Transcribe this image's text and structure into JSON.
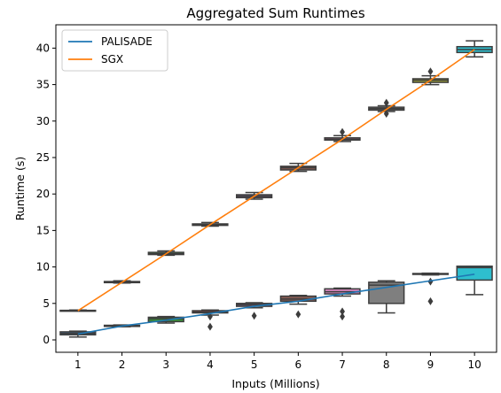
{
  "chart_data": {
    "type": "box",
    "title": "Aggregated Sum Runtimes",
    "xlabel": "Inputs (Millions)",
    "ylabel": "Runtime (s)",
    "categories": [
      "1",
      "2",
      "3",
      "4",
      "5",
      "6",
      "7",
      "8",
      "9",
      "10"
    ],
    "ylim": [
      -1.7,
      43.2
    ],
    "yticks": [
      0,
      5,
      10,
      15,
      20,
      25,
      30,
      35,
      40
    ],
    "grid": false,
    "legend_position": "upper-left",
    "series": [
      {
        "name": "PALISADE",
        "color": "#1f77b4",
        "line": [
          0.8,
          1.9,
          2.7,
          3.6,
          4.6,
          5.3,
          6.3,
          7.2,
          8.1,
          9.0
        ],
        "boxes": [
          {
            "whislo": 0.4,
            "q1": 0.7,
            "med": 0.9,
            "q3": 1.1,
            "whishi": 1.2,
            "fliers": [],
            "color": "#3a78b0"
          },
          {
            "whislo": 1.8,
            "q1": 1.85,
            "med": 1.9,
            "q3": 2.0,
            "whishi": 2.05,
            "fliers": [],
            "color": "#e1812c"
          },
          {
            "whislo": 2.3,
            "q1": 2.5,
            "med": 2.9,
            "q3": 3.1,
            "whishi": 3.2,
            "fliers": [],
            "color": "#3a923a"
          },
          {
            "whislo": 3.4,
            "q1": 3.7,
            "med": 3.8,
            "q3": 4.0,
            "whishi": 4.1,
            "fliers": [
              3.2,
              1.8
            ],
            "color": "#c03d3e"
          },
          {
            "whislo": 4.4,
            "q1": 4.6,
            "med": 4.8,
            "q3": 5.0,
            "whishi": 5.1,
            "fliers": [
              3.3
            ],
            "color": "#9372b2"
          },
          {
            "whislo": 4.9,
            "q1": 5.3,
            "med": 5.6,
            "q3": 6.0,
            "whishi": 6.1,
            "fliers": [
              3.5
            ],
            "color": "#845b53"
          },
          {
            "whislo": 6.0,
            "q1": 6.3,
            "med": 6.6,
            "q3": 7.0,
            "whishi": 7.1,
            "fliers": [
              3.9,
              3.2
            ],
            "color": "#d684bd"
          },
          {
            "whislo": 3.7,
            "q1": 5.0,
            "med": 7.5,
            "q3": 7.9,
            "whishi": 8.1,
            "fliers": [],
            "color": "#7f7f7f"
          },
          {
            "whislo": 8.9,
            "q1": 9.0,
            "med": 9.05,
            "q3": 9.1,
            "whishi": 9.15,
            "fliers": [
              8.0,
              5.3
            ],
            "color": "#a9aa35"
          },
          {
            "whislo": 6.2,
            "q1": 8.2,
            "med": 9.9,
            "q3": 10.1,
            "whishi": 10.1,
            "fliers": [],
            "color": "#2ebece"
          }
        ]
      },
      {
        "name": "SGX",
        "color": "#ff7f0e",
        "line": [
          4.0,
          7.9,
          11.8,
          15.8,
          19.7,
          23.6,
          27.5,
          31.6,
          35.6,
          39.8
        ],
        "boxes": [
          {
            "whislo": 4.0,
            "q1": 4.0,
            "med": 4.0,
            "q3": 4.05,
            "whishi": 4.1,
            "fliers": [],
            "color": "#3a78b0"
          },
          {
            "whislo": 7.8,
            "q1": 7.85,
            "med": 7.9,
            "q3": 8.0,
            "whishi": 8.1,
            "fliers": [],
            "color": "#e1812c"
          },
          {
            "whislo": 11.6,
            "q1": 11.7,
            "med": 11.8,
            "q3": 12.0,
            "whishi": 12.2,
            "fliers": [],
            "color": "#3a923a"
          },
          {
            "whislo": 15.6,
            "q1": 15.7,
            "med": 15.8,
            "q3": 15.9,
            "whishi": 16.1,
            "fliers": [],
            "color": "#c03d3e"
          },
          {
            "whislo": 19.3,
            "q1": 19.5,
            "med": 19.7,
            "q3": 19.9,
            "whishi": 20.2,
            "fliers": [],
            "color": "#9372b2"
          },
          {
            "whislo": 23.1,
            "q1": 23.3,
            "med": 23.6,
            "q3": 23.8,
            "whishi": 24.2,
            "fliers": [],
            "color": "#845b53"
          },
          {
            "whislo": 27.2,
            "q1": 27.4,
            "med": 27.5,
            "q3": 27.7,
            "whishi": 28.0,
            "fliers": [
              28.5
            ],
            "color": "#d684bd"
          },
          {
            "whislo": 31.3,
            "q1": 31.5,
            "med": 31.7,
            "q3": 31.9,
            "whishi": 32.1,
            "fliers": [
              32.5,
              31.0
            ],
            "color": "#7f7f7f"
          },
          {
            "whislo": 35.0,
            "q1": 35.3,
            "med": 35.6,
            "q3": 35.8,
            "whishi": 36.2,
            "fliers": [
              36.8
            ],
            "color": "#a9aa35"
          },
          {
            "whislo": 38.8,
            "q1": 39.4,
            "med": 39.8,
            "q3": 40.2,
            "whishi": 41.0,
            "fliers": [],
            "color": "#2ebece"
          }
        ]
      }
    ]
  }
}
